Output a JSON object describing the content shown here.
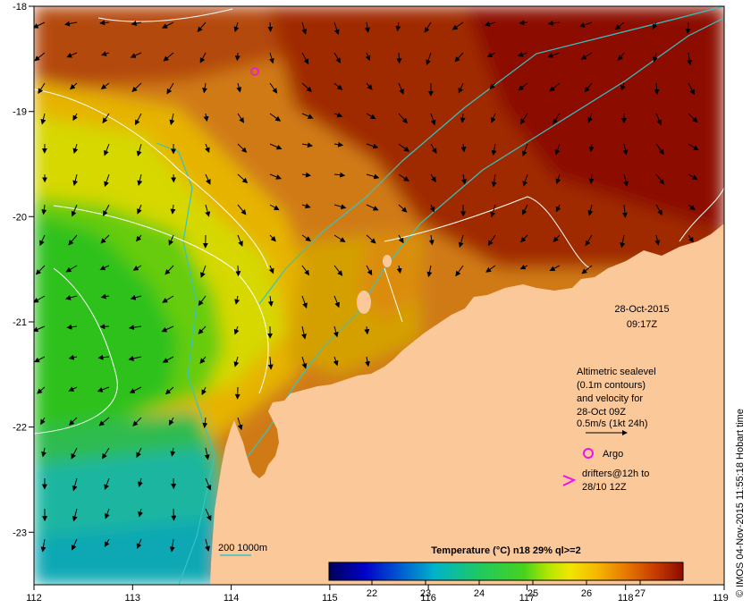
{
  "map": {
    "x_ticks": [
      "112",
      "113",
      "114",
      "115",
      "116",
      "117",
      "118",
      "119"
    ],
    "y_ticks": [
      "-18",
      "-19",
      "-20",
      "-21",
      "-22",
      "-23"
    ],
    "lon_range": [
      112,
      119
    ],
    "lat_range": [
      -18,
      -23.5
    ]
  },
  "annotations": {
    "date": "28-Oct-2015",
    "time": "09:17Z",
    "altimetry_lines": [
      "Altimetric sealevel",
      "(0.1m contours)",
      "and velocity for",
      "28-Oct 09Z",
      "0.5m/s (1kt 24h)"
    ],
    "argo_label": "Argo",
    "drifters_lines": [
      "drifters@12h to",
      "28/10 12Z"
    ],
    "bathymetry_label": "200  1000m",
    "credit": "© IMOS 04-Nov-2015 11:55:18 Hobart time"
  },
  "colorbar": {
    "title": "Temperature (°C) n18 29% ql>=2",
    "ticks": [
      "22",
      "23",
      "24",
      "25",
      "26",
      "27"
    ],
    "tick_values": [
      22,
      23,
      24,
      25,
      26,
      27
    ],
    "range": [
      21.2,
      27.8
    ]
  },
  "colors": {
    "land": "#fbc89a",
    "bathymetry": "#36c3c3",
    "contour": "#ffffff",
    "argo": "#ee11ee",
    "drifter": "#ee11ee"
  }
}
